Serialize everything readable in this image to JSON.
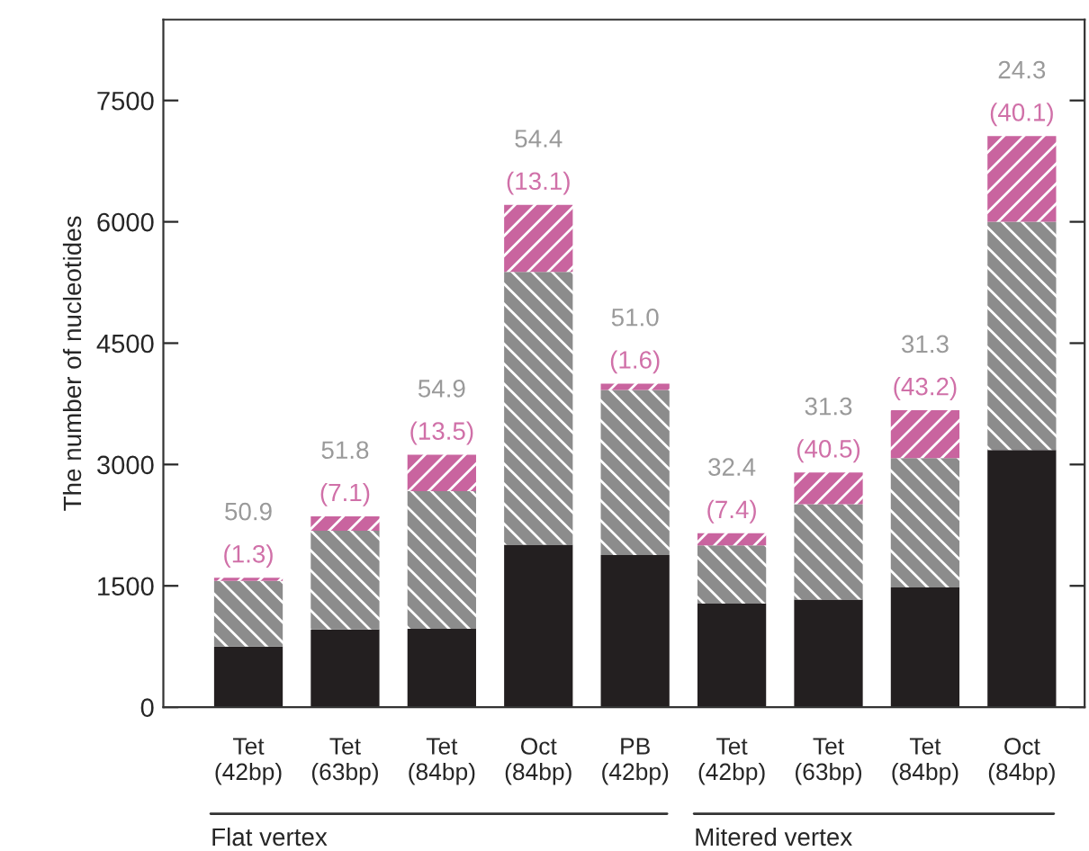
{
  "chart_data": {
    "type": "bar",
    "stacked": true,
    "ylabel": "The number of nucleotides",
    "categories": [
      "Tet\n(42bp)",
      "Tet\n(63bp)",
      "Tet\n(84bp)",
      "Oct\n(84bp)",
      "PB\n(42bp)",
      "Tet\n(42bp)",
      "Tet\n(63bp)",
      "Tet\n(84bp)",
      "Oct\n(84bp)"
    ],
    "series": [
      {
        "color": "#231f20",
        "values": [
          750,
          960,
          970,
          2010,
          1880,
          1280,
          1330,
          1480,
          3180
        ]
      },
      {
        "color": "#8c8c8c",
        "values": [
          810,
          1220,
          1700,
          3370,
          2040,
          720,
          1180,
          1600,
          2820
        ]
      },
      {
        "color": "#c9649f",
        "values": [
          40,
          180,
          450,
          830,
          80,
          150,
          390,
          590,
          1060
        ]
      }
    ],
    "ylim": [
      0,
      8500
    ],
    "yticks": [
      0,
      1500,
      3000,
      4500,
      6000,
      7500
    ],
    "grid": false,
    "legend": false,
    "annotations": [
      "Flat vertex",
      "Mitered vertex",
      "50.9",
      "(1.3)",
      "51.8",
      "(7.1)",
      "54.9",
      "(13.5)",
      "54.4",
      "(13.1)",
      "51.0",
      "(1.6)",
      "32.4",
      "(7.4)",
      "31.3",
      "(40.5)",
      "31.3",
      "(43.2)",
      "24.3",
      "(40.1)"
    ]
  }
}
